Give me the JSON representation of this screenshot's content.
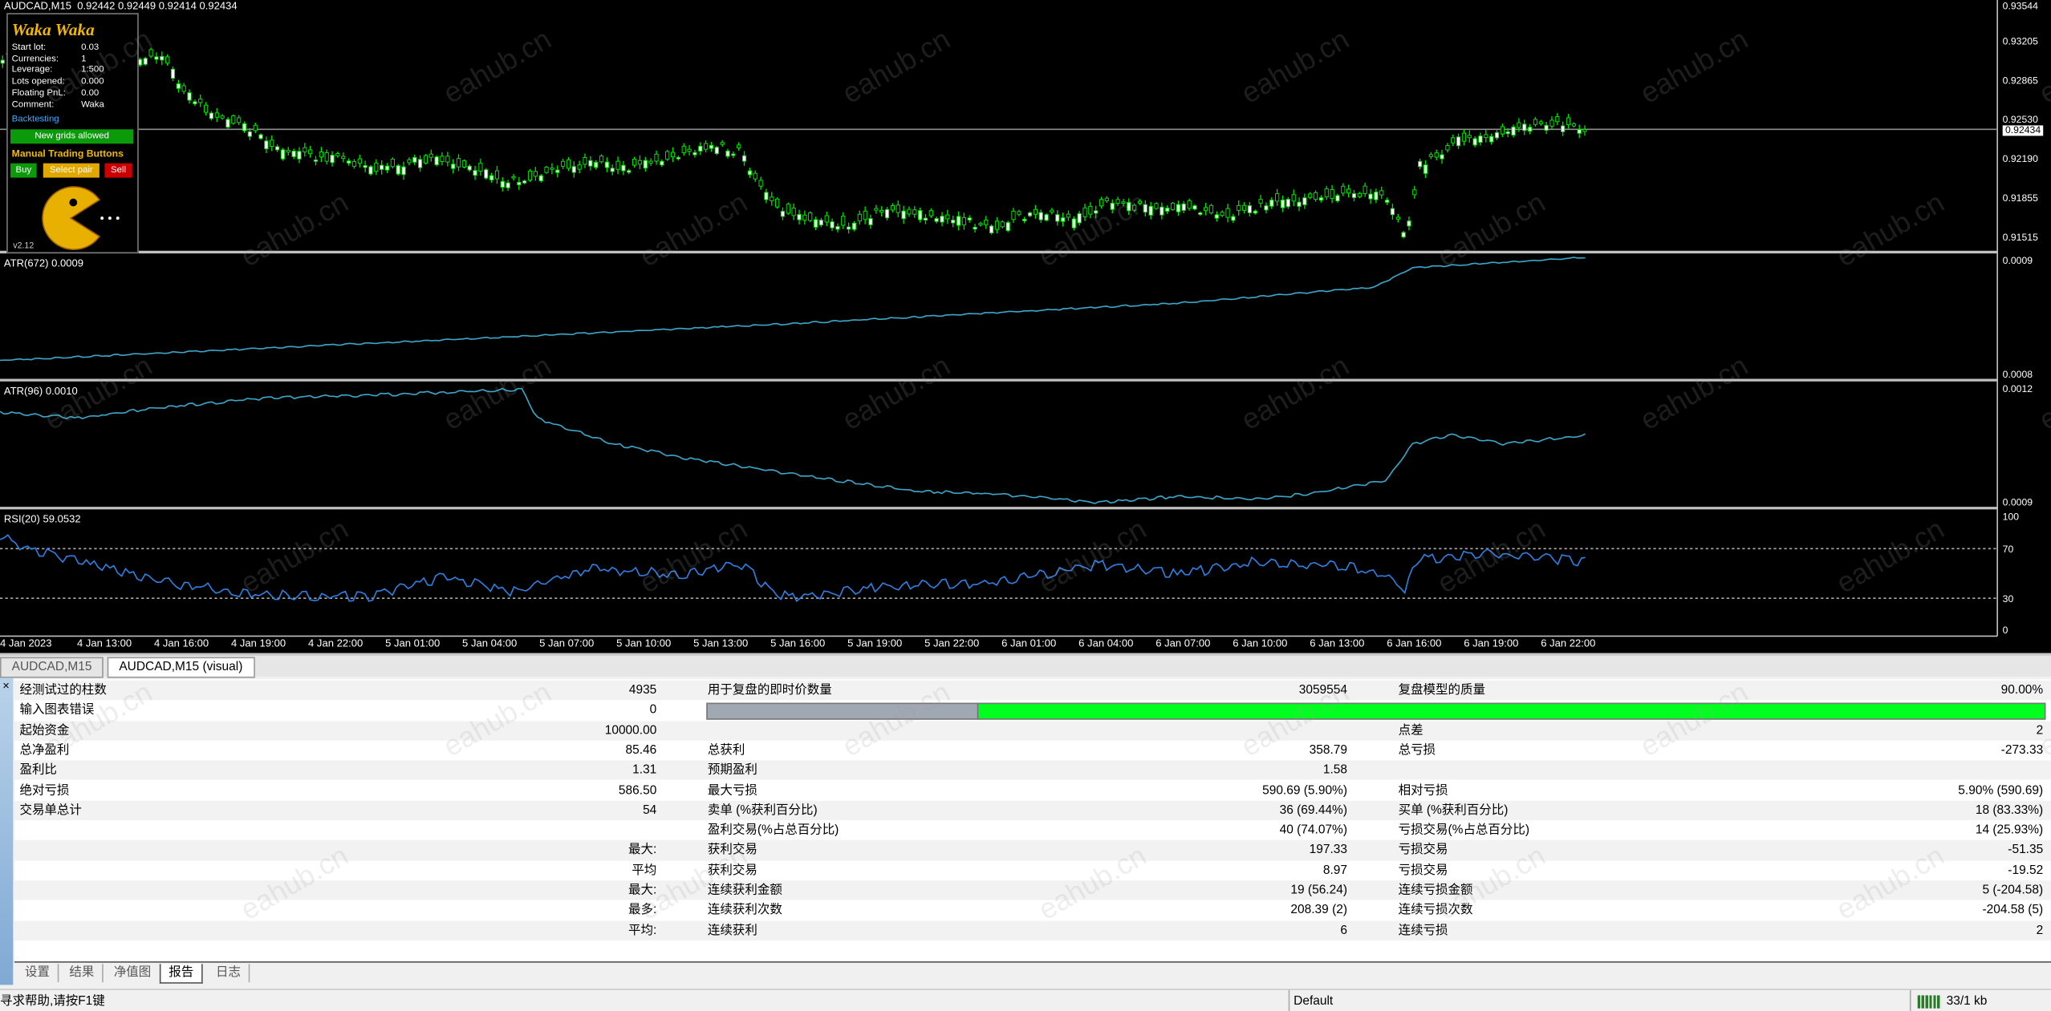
{
  "chart_header": "AUDCAD,M15  0.92442 0.92449 0.92414 0.92434",
  "ea_panel": {
    "title": "Waka Waka",
    "rows": [
      [
        "Start lot:",
        "0.03"
      ],
      [
        "Currencies:",
        "1"
      ],
      [
        "Leverage:",
        "1:500"
      ],
      [
        "Lots opened:",
        "0.000"
      ],
      [
        "Floating PnL:",
        "0.00"
      ],
      [
        "Comment:",
        "Waka"
      ]
    ],
    "mode": "Backtesting",
    "status": "New grids allowed",
    "manual_title": "Manual Trading Buttons",
    "buttons": [
      "Buy",
      "Select pair",
      "Sell"
    ],
    "version": "v2.12"
  },
  "price_axis": [
    "0.93544",
    "0.93205",
    "0.92865",
    "0.92530",
    "0.92434",
    "0.92190",
    "0.91855",
    "0.91515"
  ],
  "indicators": [
    {
      "label": "ATR(672) 0.0009",
      "axis": [
        "0.0009",
        "0.0008"
      ]
    },
    {
      "label": "ATR(96) 0.0010",
      "axis": [
        "0.0012",
        "0.0009"
      ]
    },
    {
      "label": "RSI(20) 59.0532",
      "axis": [
        "100",
        "70",
        "30",
        "0"
      ]
    }
  ],
  "time_axis": [
    "4 Jan 2023",
    "4 Jan 13:00",
    "4 Jan 16:00",
    "4 Jan 19:00",
    "4 Jan 22:00",
    "5 Jan 01:00",
    "5 Jan 04:00",
    "5 Jan 07:00",
    "5 Jan 10:00",
    "5 Jan 13:00",
    "5 Jan 16:00",
    "5 Jan 19:00",
    "5 Jan 22:00",
    "6 Jan 01:00",
    "6 Jan 04:00",
    "6 Jan 07:00",
    "6 Jan 10:00",
    "6 Jan 13:00",
    "6 Jan 16:00",
    "6 Jan 19:00",
    "6 Jan 22:00"
  ],
  "watermark": "eahub.cn",
  "chart_tabs": [
    "AUDCAD,M15",
    "AUDCAD,M15 (visual)"
  ],
  "report": {
    "rows": [
      [
        "经测试过的柱数",
        "4935",
        "用于复盘的即时价数量",
        "3059554",
        "复盘模型的质量",
        "90.00%"
      ],
      [
        "输入图表错误",
        "0",
        null,
        null,
        null,
        null
      ],
      [
        "起始资金",
        "10000.00",
        null,
        null,
        "点差",
        "2"
      ],
      [
        "总净盈利",
        "85.46",
        "总获利",
        "358.79",
        "总亏损",
        "-273.33"
      ],
      [
        "盈利比",
        "1.31",
        "预期盈利",
        "1.58",
        null,
        null
      ],
      [
        "绝对亏损",
        "586.50",
        "最大亏损",
        "590.69 (5.90%)",
        "相对亏损",
        "5.90% (590.69)"
      ],
      [
        "交易单总计",
        "54",
        "卖单 (%获利百分比)",
        "36 (69.44%)",
        "买单 (%获利百分比)",
        "18 (83.33%)"
      ],
      [
        null,
        null,
        "盈利交易(%占总百分比)",
        "40 (74.07%)",
        "亏损交易(%占总百分比)",
        "14 (25.93%)"
      ],
      [
        null,
        "最大:",
        "获利交易",
        "197.33",
        "亏损交易",
        "-51.35"
      ],
      [
        null,
        "平均",
        "获利交易",
        "8.97",
        "亏损交易",
        "-19.52"
      ],
      [
        null,
        "最大:",
        "连续获利金额",
        "19 (56.24)",
        "连续亏损金额",
        "5 (-204.58)"
      ],
      [
        null,
        "最多:",
        "连续获利次数",
        "208.39 (2)",
        "连续亏损次数",
        "-204.58 (5)"
      ],
      [
        null,
        "平均:",
        "连续获利",
        "6",
        "连续亏损",
        "2"
      ]
    ]
  },
  "tester_tabs": [
    "设置",
    "结果",
    "净值图",
    "报告",
    "日志"
  ],
  "status_bar": {
    "help": "寻求帮助,请按F1键",
    "profile": "Default",
    "traffic": "33/1 kb"
  }
}
